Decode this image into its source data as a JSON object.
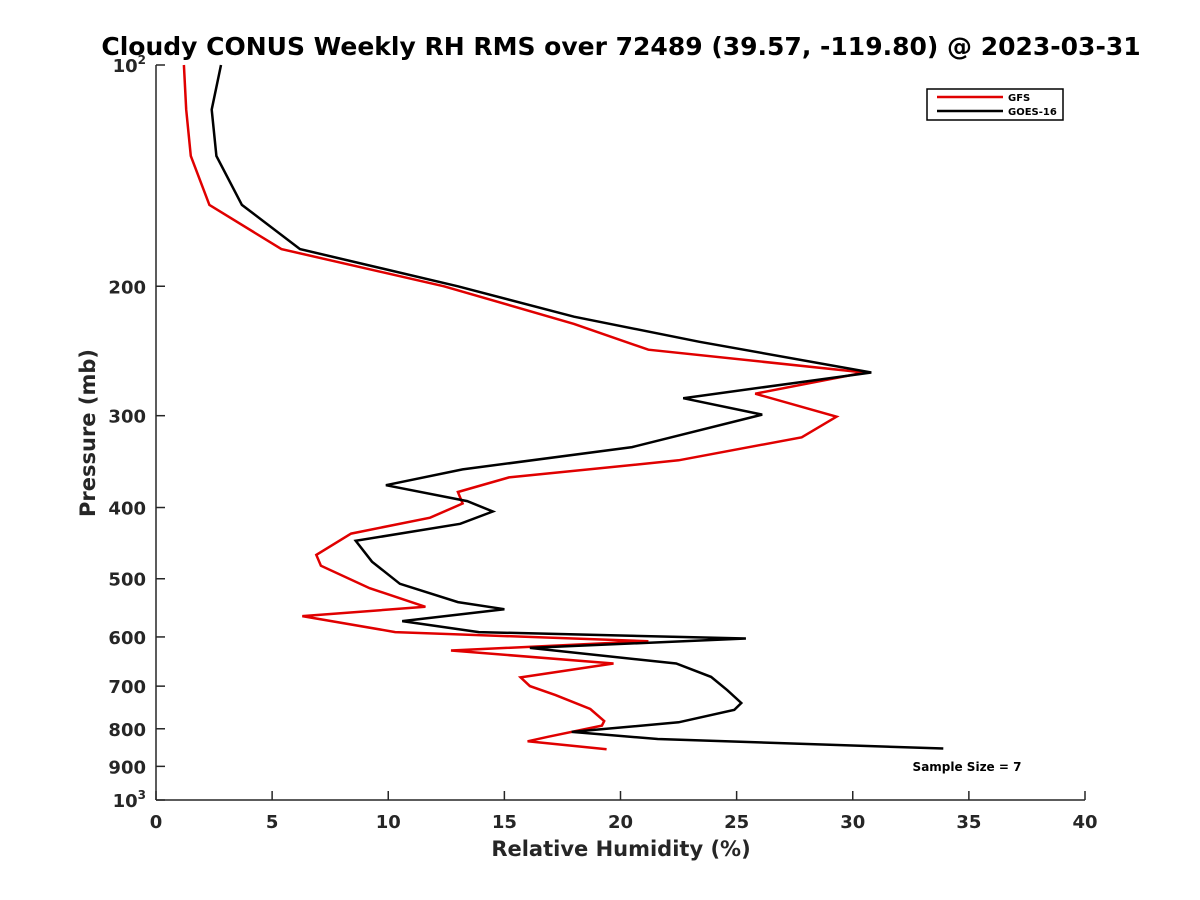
{
  "chart_data": {
    "type": "line",
    "title": "Cloudy CONUS Weekly RH RMS over 72489 (39.57, -119.80) @ 2023-03-31",
    "xlabel": "Relative Humidity (%)",
    "ylabel": "Pressure (mb)",
    "xlim": [
      0,
      40
    ],
    "ylim": [
      100,
      1000
    ],
    "y_scale": "log",
    "y_reversed": true,
    "x_ticks": [
      "0",
      "5",
      "10",
      "15",
      "20",
      "25",
      "30",
      "35",
      "40"
    ],
    "y_ticks": [
      {
        "value": 100,
        "base": "10",
        "sup": "2"
      },
      {
        "value": 200,
        "base": "200",
        "sup": ""
      },
      {
        "value": 300,
        "base": "300",
        "sup": ""
      },
      {
        "value": 400,
        "base": "400",
        "sup": ""
      },
      {
        "value": 500,
        "base": "500",
        "sup": ""
      },
      {
        "value": 600,
        "base": "600",
        "sup": ""
      },
      {
        "value": 700,
        "base": "700",
        "sup": ""
      },
      {
        "value": 800,
        "base": "800",
        "sup": ""
      },
      {
        "value": 900,
        "base": "900",
        "sup": ""
      },
      {
        "value": 1000,
        "base": "10",
        "sup": "3"
      }
    ],
    "grid": false,
    "legend_position": "top-right",
    "annotation": "Sample Size = 7",
    "series": [
      {
        "name": "GFS",
        "color": "#e00000",
        "points": [
          [
            1.2,
            100
          ],
          [
            1.3,
            115
          ],
          [
            1.5,
            133
          ],
          [
            2.3,
            155
          ],
          [
            5.4,
            178
          ],
          [
            12.4,
            200
          ],
          [
            18.0,
            225
          ],
          [
            21.2,
            244
          ],
          [
            30.5,
            262
          ],
          [
            25.8,
            280
          ],
          [
            29.3,
            301
          ],
          [
            27.8,
            321
          ],
          [
            22.5,
            345
          ],
          [
            15.2,
            364
          ],
          [
            13.0,
            381
          ],
          [
            13.2,
            395
          ],
          [
            11.8,
            413
          ],
          [
            8.4,
            434
          ],
          [
            6.9,
            464
          ],
          [
            7.1,
            480
          ],
          [
            9.2,
            515
          ],
          [
            11.6,
            546
          ],
          [
            6.3,
            562
          ],
          [
            10.3,
            591
          ],
          [
            21.2,
            608
          ],
          [
            12.7,
            626
          ],
          [
            19.7,
            652
          ],
          [
            15.7,
            681
          ],
          [
            16.1,
            700
          ],
          [
            17.2,
            720
          ],
          [
            18.7,
            752
          ],
          [
            19.3,
            781
          ],
          [
            19.2,
            792
          ],
          [
            16.9,
            820
          ],
          [
            16.0,
            832
          ],
          [
            19.4,
            853
          ]
        ]
      },
      {
        "name": "GOES-16",
        "color": "#000000",
        "points": [
          [
            2.8,
            100
          ],
          [
            2.4,
            115
          ],
          [
            2.6,
            133
          ],
          [
            3.7,
            155
          ],
          [
            6.2,
            178
          ],
          [
            13.0,
            200
          ],
          [
            18.0,
            220
          ],
          [
            23.4,
            238
          ],
          [
            30.8,
            262
          ],
          [
            22.7,
            284
          ],
          [
            26.1,
            299
          ],
          [
            20.5,
            331
          ],
          [
            13.2,
            355
          ],
          [
            9.9,
            373
          ],
          [
            13.4,
            392
          ],
          [
            14.5,
            405
          ],
          [
            13.1,
            421
          ],
          [
            8.6,
            444
          ],
          [
            9.3,
            474
          ],
          [
            10.5,
            508
          ],
          [
            13.0,
            538
          ],
          [
            15.0,
            550
          ],
          [
            10.6,
            571
          ],
          [
            13.9,
            591
          ],
          [
            25.4,
            603
          ],
          [
            16.1,
            621
          ],
          [
            22.4,
            652
          ],
          [
            23.9,
            680
          ],
          [
            24.6,
            709
          ],
          [
            25.2,
            738
          ],
          [
            24.9,
            754
          ],
          [
            22.5,
            784
          ],
          [
            17.9,
            808
          ],
          [
            21.6,
            826
          ],
          [
            33.9,
            851
          ]
        ]
      }
    ]
  },
  "colors": {
    "axis": "#262626",
    "gfs": "#e00000",
    "goes": "#000000",
    "background": "#ffffff"
  }
}
